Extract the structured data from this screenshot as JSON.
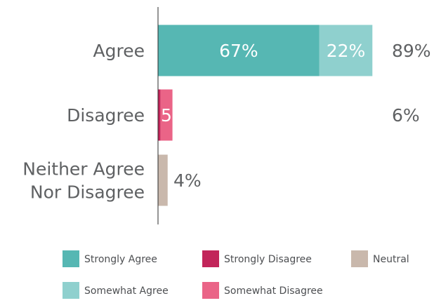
{
  "chart_data": {
    "type": "bar",
    "orientation": "horizontal",
    "stacked": true,
    "title": "",
    "xlabel": "",
    "ylabel": "",
    "xlim": [
      0,
      100
    ],
    "grid": false,
    "legend_position": "bottom",
    "categories": [
      {
        "lines": [
          "Agree"
        ],
        "total_label": "89%"
      },
      {
        "lines": [
          "Disagree"
        ],
        "total_label": "6%"
      },
      {
        "lines": [
          "Neither Agree",
          "Nor Disagree"
        ],
        "total_label": "4%"
      }
    ],
    "series": [
      {
        "name": "Strongly Agree",
        "color": "#56b7b3",
        "values": [
          67,
          0,
          0
        ],
        "labels": [
          "67%",
          "",
          ""
        ]
      },
      {
        "name": "Somewhat Agree",
        "color": "#8fd0ce",
        "values": [
          22,
          0,
          0
        ],
        "labels": [
          "22%",
          "",
          ""
        ]
      },
      {
        "name": "Strongly Disagree",
        "color": "#c2255a",
        "values": [
          0,
          1,
          0
        ],
        "labels": [
          "",
          "",
          ""
        ]
      },
      {
        "name": "Somewhat Disagree",
        "color": "#ea6487",
        "values": [
          0,
          5,
          0
        ],
        "labels": [
          "",
          "5",
          ""
        ]
      },
      {
        "name": "Neutral",
        "color": "#c9b8ac",
        "values": [
          0,
          0,
          4
        ],
        "labels": [
          "",
          "",
          ""
        ]
      }
    ],
    "legend_order": [
      "Strongly Agree",
      "Strongly Disagree",
      "Neutral",
      "Somewhat Agree",
      "Somewhat Disagree"
    ]
  }
}
